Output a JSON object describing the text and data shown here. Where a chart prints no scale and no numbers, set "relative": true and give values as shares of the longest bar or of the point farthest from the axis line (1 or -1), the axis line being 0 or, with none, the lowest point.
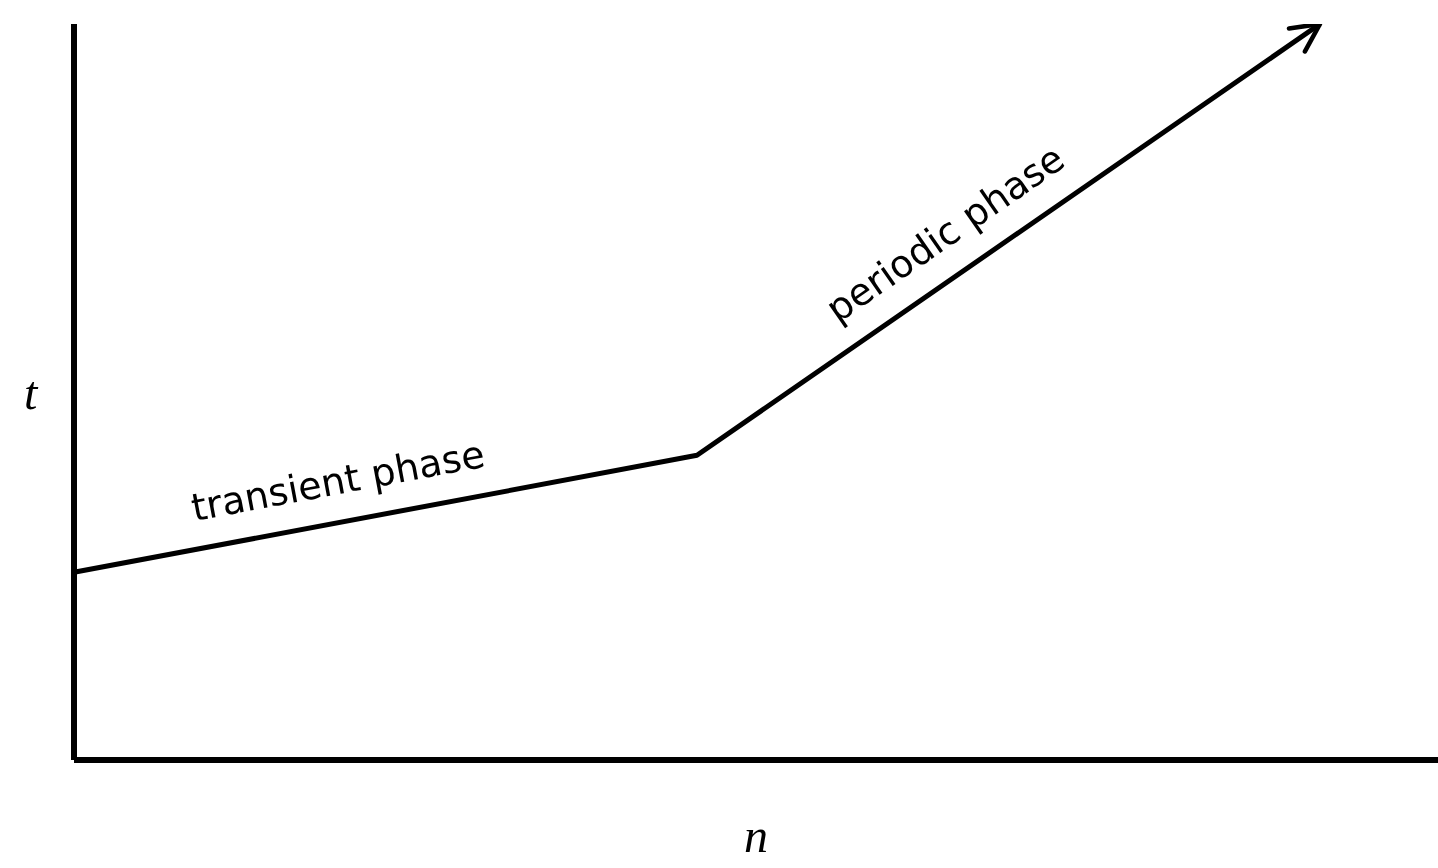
{
  "chart_data": {
    "type": "line",
    "relative": true,
    "xlabel": "n",
    "ylabel": "t",
    "categories": [
      null,
      null,
      null
    ],
    "series": [
      {
        "color": "#000000",
        "values": [
          0.255,
          0.414,
          1
        ]
      }
    ],
    "annotations": [
      "transient phase",
      "periodic phase"
    ],
    "marker": "none",
    "line_style": "solid",
    "grid": false,
    "legend": false
  }
}
